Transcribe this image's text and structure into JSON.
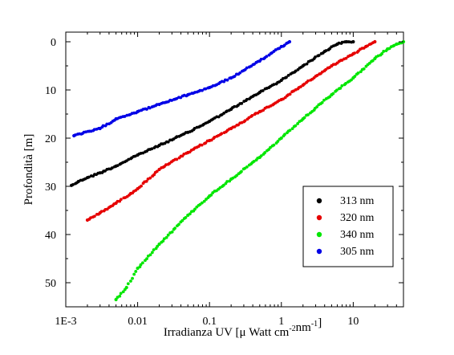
{
  "chart_data": {
    "type": "scatter",
    "title": "",
    "xlabel_parts": {
      "prefix": "Irradianza UV [",
      "mu": "μ",
      "unit": " Watt cm",
      "exp1": "-2",
      "mid": "nm",
      "exp2": "-1",
      "suffix": "]"
    },
    "ylabel": "Profondità [m]",
    "x_scale": "log",
    "xlim": [
      0.001,
      50
    ],
    "ylim": [
      55,
      -2
    ],
    "y_inverted": true,
    "x_ticks": [
      {
        "value": 0.001,
        "label": "1E-3"
      },
      {
        "value": 0.01,
        "label": "0.01"
      },
      {
        "value": 0.1,
        "label": "0.1"
      },
      {
        "value": 1,
        "label": "1"
      },
      {
        "value": 10,
        "label": "10"
      }
    ],
    "y_ticks": [
      {
        "value": 0,
        "label": "0"
      },
      {
        "value": 10,
        "label": "10"
      },
      {
        "value": 20,
        "label": "20"
      },
      {
        "value": 30,
        "label": "30"
      },
      {
        "value": 40,
        "label": "40"
      },
      {
        "value": 50,
        "label": "50"
      }
    ],
    "grid": false,
    "legend_position": "bottom-right",
    "series": [
      {
        "name": "313 nm",
        "color": "#000000",
        "points": [
          [
            0.0012,
            29.8
          ],
          [
            0.0015,
            29.0
          ],
          [
            0.002,
            28.2
          ],
          [
            0.003,
            27.2
          ],
          [
            0.005,
            25.8
          ],
          [
            0.01,
            23.5
          ],
          [
            0.02,
            21.5
          ],
          [
            0.05,
            18.8
          ],
          [
            0.1,
            16.5
          ],
          [
            0.2,
            14.0
          ],
          [
            0.5,
            10.5
          ],
          [
            1.0,
            8.0
          ],
          [
            2.0,
            5.0
          ],
          [
            4.0,
            2.0
          ],
          [
            6.0,
            0.5
          ],
          [
            8.0,
            0.0
          ],
          [
            10.0,
            0.0
          ]
        ]
      },
      {
        "name": "320 nm",
        "color": "#e60000",
        "points": [
          [
            0.002,
            37.0
          ],
          [
            0.003,
            35.5
          ],
          [
            0.005,
            33.5
          ],
          [
            0.008,
            31.5
          ],
          [
            0.01,
            30.5
          ],
          [
            0.02,
            26.5
          ],
          [
            0.05,
            23.0
          ],
          [
            0.1,
            20.5
          ],
          [
            0.2,
            18.0
          ],
          [
            0.5,
            14.5
          ],
          [
            1.0,
            12.0
          ],
          [
            2.0,
            9.0
          ],
          [
            5.0,
            5.0
          ],
          [
            10.0,
            2.5
          ],
          [
            15.0,
            1.0
          ],
          [
            20.0,
            0.0
          ]
        ]
      },
      {
        "name": "340 nm",
        "color": "#00e600",
        "points": [
          [
            0.005,
            53.5
          ],
          [
            0.007,
            51.0
          ],
          [
            0.01,
            47.0
          ],
          [
            0.02,
            42.0
          ],
          [
            0.05,
            36.0
          ],
          [
            0.1,
            32.0
          ],
          [
            0.2,
            28.5
          ],
          [
            0.5,
            24.0
          ],
          [
            1.0,
            20.0
          ],
          [
            2.0,
            16.0
          ],
          [
            5.0,
            11.0
          ],
          [
            10.0,
            7.5
          ],
          [
            20.0,
            3.5
          ],
          [
            30.0,
            1.5
          ],
          [
            40.0,
            0.5
          ],
          [
            50.0,
            0.0
          ]
        ]
      },
      {
        "name": "305 nm",
        "color": "#0000e6",
        "points": [
          [
            0.0013,
            19.5
          ],
          [
            0.003,
            18.0
          ],
          [
            0.005,
            16.0
          ],
          [
            0.01,
            14.5
          ],
          [
            0.02,
            13.0
          ],
          [
            0.05,
            11.0
          ],
          [
            0.1,
            9.5
          ],
          [
            0.2,
            7.5
          ],
          [
            0.5,
            4.0
          ],
          [
            1.0,
            1.0
          ],
          [
            1.3,
            0.0
          ]
        ]
      }
    ]
  }
}
